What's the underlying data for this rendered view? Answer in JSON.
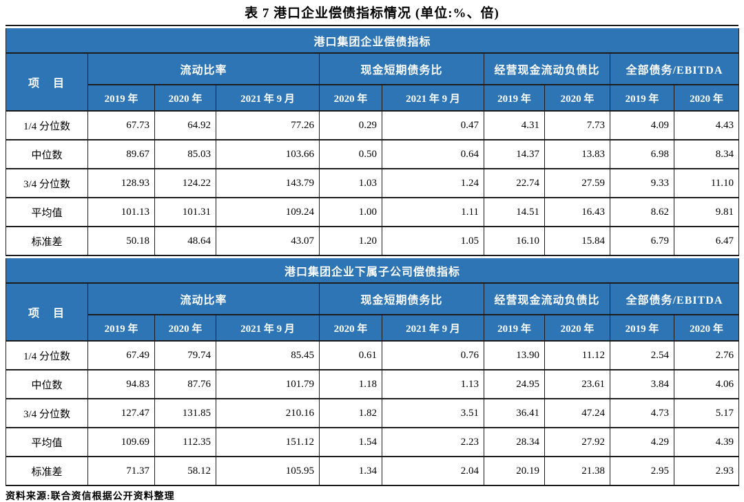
{
  "title": "表 7  港口企业偿债指标情况 (单位:%、倍)",
  "footer": "资料来源:联合资信根据公开资料整理",
  "colors": {
    "header_bg": "#2E75B6",
    "header_text": "#FFFFFF",
    "border": "#1B1B1B"
  },
  "table": {
    "item_header": "项　目",
    "groups": [
      {
        "label": "流动比率",
        "cols": [
          "2019 年",
          "2020 年",
          "2021 年 9 月"
        ]
      },
      {
        "label": "现金短期债务比",
        "cols": [
          "2020 年",
          "2021 年 9 月"
        ]
      },
      {
        "label": "经营现金流动负债比",
        "cols": [
          "2019 年",
          "2020 年"
        ]
      },
      {
        "label": "全部债务/EBITDA",
        "cols": [
          "2019 年",
          "2020 年"
        ]
      }
    ],
    "sections": [
      {
        "title": "港口集团企业偿债指标",
        "rows": [
          {
            "label": "1/4 分位数",
            "values": [
              "67.73",
              "64.92",
              "77.26",
              "0.29",
              "0.47",
              "4.31",
              "7.73",
              "4.09",
              "4.43"
            ]
          },
          {
            "label": "中位数",
            "values": [
              "89.67",
              "85.03",
              "103.66",
              "0.50",
              "0.64",
              "14.37",
              "13.83",
              "6.98",
              "8.34"
            ]
          },
          {
            "label": "3/4 分位数",
            "values": [
              "128.93",
              "124.22",
              "143.79",
              "1.03",
              "1.24",
              "22.74",
              "27.59",
              "9.33",
              "11.10"
            ]
          },
          {
            "label": "平均值",
            "values": [
              "101.13",
              "101.31",
              "109.24",
              "1.00",
              "1.11",
              "14.51",
              "16.43",
              "8.62",
              "9.81"
            ]
          },
          {
            "label": "标准差",
            "values": [
              "50.18",
              "48.64",
              "43.07",
              "1.20",
              "1.05",
              "16.10",
              "15.84",
              "6.79",
              "6.47"
            ]
          }
        ]
      },
      {
        "title": "港口集团企业下属子公司偿债指标",
        "rows": [
          {
            "label": "1/4 分位数",
            "values": [
              "67.49",
              "79.74",
              "85.45",
              "0.61",
              "0.76",
              "13.90",
              "11.12",
              "2.54",
              "2.76"
            ]
          },
          {
            "label": "中位数",
            "values": [
              "94.83",
              "87.76",
              "101.79",
              "1.18",
              "1.13",
              "24.95",
              "23.61",
              "3.84",
              "4.06"
            ]
          },
          {
            "label": "3/4 分位数",
            "values": [
              "127.47",
              "131.85",
              "210.16",
              "1.82",
              "3.51",
              "36.41",
              "47.24",
              "4.73",
              "5.17"
            ]
          },
          {
            "label": "平均值",
            "values": [
              "109.69",
              "112.35",
              "151.12",
              "1.54",
              "2.23",
              "28.34",
              "27.92",
              "4.29",
              "4.39"
            ]
          },
          {
            "label": "标准差",
            "values": [
              "71.37",
              "58.12",
              "105.95",
              "1.34",
              "2.04",
              "20.19",
              "21.38",
              "2.95",
              "2.93"
            ]
          }
        ]
      }
    ]
  }
}
